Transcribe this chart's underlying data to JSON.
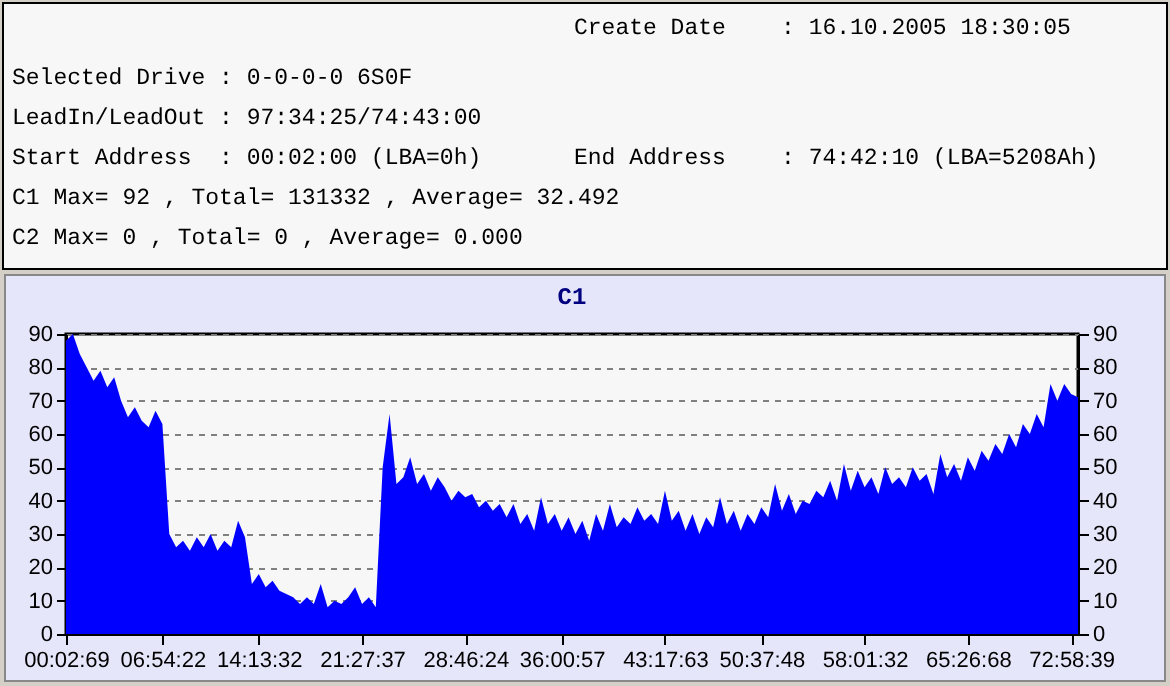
{
  "chart_data": [
    {
      "type": "other",
      "annotations": [
        "Create Date    : 16.10.2005 18:30:05",
        "Selected Drive : 0-0-0-0 6S0F",
        "LeadIn/LeadOut : 97:34:25/74:43:00",
        "Start Address  : 00:02:00 (LBA=0h)",
        "End Address    : 74:42:10 (LBA=5208Ah)",
        "C1 Max= 92 , Total= 131332 , Average= 32.492",
        "C2 Max= 0 , Total= 0 , Average= 0.000"
      ]
    },
    {
      "type": "area",
      "title": "C1",
      "grid": "y",
      "legend": false,
      "categories": [
        "00:02:69",
        null,
        null,
        null,
        null,
        null,
        null,
        null,
        null,
        null,
        null,
        null,
        null,
        null,
        "06:54:22",
        null,
        null,
        null,
        null,
        null,
        null,
        null,
        null,
        null,
        null,
        null,
        null,
        null,
        "14:13:32",
        null,
        null,
        null,
        null,
        null,
        null,
        null,
        null,
        null,
        null,
        null,
        null,
        null,
        null,
        "21:27:37",
        null,
        null,
        null,
        null,
        null,
        null,
        null,
        null,
        null,
        null,
        null,
        null,
        null,
        null,
        "28:46:24",
        null,
        null,
        null,
        null,
        null,
        null,
        null,
        null,
        null,
        null,
        null,
        null,
        null,
        "36:00:57",
        null,
        null,
        null,
        null,
        null,
        null,
        null,
        null,
        null,
        null,
        null,
        null,
        null,
        null,
        "43:17:63",
        null,
        null,
        null,
        null,
        null,
        null,
        null,
        null,
        null,
        null,
        null,
        null,
        null,
        "50:37:48",
        null,
        null,
        null,
        null,
        null,
        null,
        null,
        null,
        null,
        null,
        null,
        null,
        null,
        null,
        "58:01:32",
        null,
        null,
        null,
        null,
        null,
        null,
        null,
        null,
        null,
        null,
        null,
        null,
        null,
        null,
        "65:26:68",
        null,
        null,
        null,
        null,
        null,
        null,
        null,
        null,
        null,
        null,
        null,
        null,
        null,
        null,
        "72:58:39",
        null
      ],
      "series": [
        {
          "color": "#0000ff",
          "values": [
            88,
            90,
            84,
            80,
            76,
            79,
            74,
            77,
            70,
            65,
            68,
            64,
            62,
            67,
            63,
            30,
            26,
            28,
            25,
            29,
            26,
            30,
            25,
            28,
            26,
            34,
            29,
            15,
            18,
            14,
            16,
            13,
            12,
            11,
            9,
            11,
            9,
            15,
            8,
            10,
            9,
            11,
            14,
            9,
            11,
            8,
            50,
            66,
            45,
            47,
            53,
            45,
            48,
            43,
            47,
            44,
            40,
            43,
            41,
            42,
            38,
            40,
            37,
            39,
            35,
            39,
            33,
            36,
            31,
            41,
            33,
            36,
            31,
            35,
            30,
            34,
            28,
            36,
            31,
            39,
            32,
            35,
            33,
            38,
            34,
            36,
            33,
            43,
            34,
            37,
            31,
            36,
            30,
            35,
            32,
            41,
            33,
            37,
            31,
            36,
            33,
            38,
            35,
            45,
            37,
            42,
            36,
            40,
            39,
            43,
            41,
            46,
            40,
            51,
            43,
            49,
            44,
            47,
            42,
            50,
            45,
            47,
            44,
            50,
            46,
            48,
            42,
            54,
            47,
            51,
            46,
            53,
            49,
            55,
            52,
            57,
            54,
            60,
            56,
            63,
            60,
            66,
            62,
            75,
            70,
            75,
            72,
            71
          ]
        }
      ],
      "ylim": [
        0,
        90
      ],
      "yticks": [
        0,
        10,
        20,
        30,
        40,
        50,
        60,
        70,
        80,
        90
      ],
      "y2lim": [
        0,
        90
      ],
      "y2ticks": [
        0,
        10,
        20,
        30,
        40,
        50,
        60,
        70,
        80,
        90
      ]
    }
  ]
}
